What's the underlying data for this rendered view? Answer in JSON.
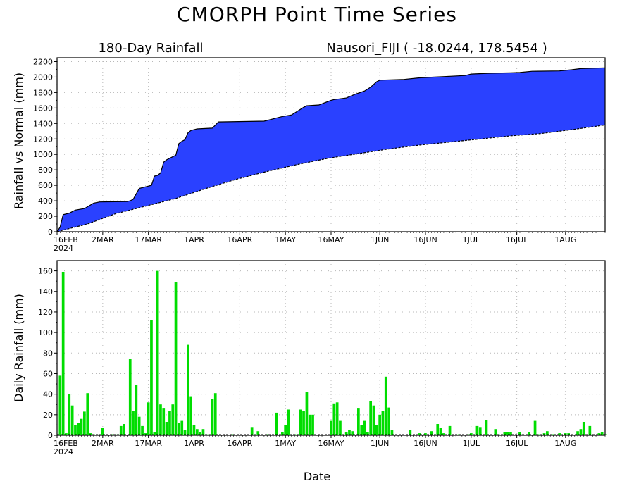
{
  "page": {
    "title": "CMORPH Point Time Series",
    "xlabel": "Date"
  },
  "chart_data": [
    {
      "type": "area",
      "title": "180-Day Rainfall",
      "subtitle": "Nausori_FIJI ( -18.0244, 178.5454 )",
      "ylabel": "Rainfall vs Normal (mm)",
      "ylim": [
        0,
        2250
      ],
      "yticks": [
        0,
        200,
        400,
        600,
        800,
        1000,
        1200,
        1400,
        1600,
        1800,
        2000,
        2200
      ],
      "xlim": [
        "2024-02-16",
        "2024-08-14"
      ],
      "xticks": [
        {
          "date": "2024-02-16",
          "label": "16FEB",
          "label2": "2024"
        },
        {
          "date": "2024-03-02",
          "label": "2MAR"
        },
        {
          "date": "2024-03-17",
          "label": "17MAR"
        },
        {
          "date": "2024-04-01",
          "label": "1APR"
        },
        {
          "date": "2024-04-16",
          "label": "16APR"
        },
        {
          "date": "2024-05-01",
          "label": "1MAY"
        },
        {
          "date": "2024-05-16",
          "label": "16MAY"
        },
        {
          "date": "2024-06-01",
          "label": "1JUN"
        },
        {
          "date": "2024-06-16",
          "label": "16JUN"
        },
        {
          "date": "2024-07-01",
          "label": "1JUL"
        },
        {
          "date": "2024-07-16",
          "label": "16JUL"
        },
        {
          "date": "2024-08-01",
          "label": "1AUG"
        }
      ],
      "grid": true,
      "fill_color": "#2a41ff",
      "series": [
        {
          "points": [
            [
              "2024-02-16",
              0
            ],
            [
              "2024-02-17",
              60
            ],
            [
              "2024-02-18",
              220
            ],
            [
              "2024-02-20",
              240
            ],
            [
              "2024-02-22",
              280
            ],
            [
              "2024-02-25",
              300
            ],
            [
              "2024-02-28",
              370
            ],
            [
              "2024-03-01",
              385
            ],
            [
              "2024-03-06",
              388
            ],
            [
              "2024-03-10",
              390
            ],
            [
              "2024-03-11",
              400
            ],
            [
              "2024-03-12",
              420
            ],
            [
              "2024-03-13",
              490
            ],
            [
              "2024-03-14",
              560
            ],
            [
              "2024-03-16",
              580
            ],
            [
              "2024-03-18",
              600
            ],
            [
              "2024-03-19",
              720
            ],
            [
              "2024-03-20",
              730
            ],
            [
              "2024-03-21",
              760
            ],
            [
              "2024-03-22",
              900
            ],
            [
              "2024-03-23",
              930
            ],
            [
              "2024-03-24",
              950
            ],
            [
              "2024-03-26",
              990
            ],
            [
              "2024-03-27",
              1140
            ],
            [
              "2024-03-28",
              1170
            ],
            [
              "2024-03-29",
              1190
            ],
            [
              "2024-03-30",
              1280
            ],
            [
              "2024-03-31",
              1310
            ],
            [
              "2024-04-02",
              1330
            ],
            [
              "2024-04-07",
              1340
            ],
            [
              "2024-04-08",
              1380
            ],
            [
              "2024-04-09",
              1420
            ],
            [
              "2024-04-24",
              1430
            ],
            [
              "2024-04-26",
              1450
            ],
            [
              "2024-04-28",
              1470
            ],
            [
              "2024-04-30",
              1490
            ],
            [
              "2024-05-03",
              1510
            ],
            [
              "2024-05-05",
              1560
            ],
            [
              "2024-05-07",
              1610
            ],
            [
              "2024-05-08",
              1630
            ],
            [
              "2024-05-12",
              1640
            ],
            [
              "2024-05-14",
              1670
            ],
            [
              "2024-05-16",
              1700
            ],
            [
              "2024-05-17",
              1710
            ],
            [
              "2024-05-21",
              1730
            ],
            [
              "2024-05-24",
              1780
            ],
            [
              "2024-05-27",
              1820
            ],
            [
              "2024-05-29",
              1870
            ],
            [
              "2024-05-31",
              1940
            ],
            [
              "2024-06-01",
              1960
            ],
            [
              "2024-06-09",
              1970
            ],
            [
              "2024-06-14",
              1990
            ],
            [
              "2024-06-19",
              2000
            ],
            [
              "2024-06-24",
              2010
            ],
            [
              "2024-06-29",
              2020
            ],
            [
              "2024-07-01",
              2040
            ],
            [
              "2024-07-07",
              2050
            ],
            [
              "2024-07-14",
              2055
            ],
            [
              "2024-07-17",
              2060
            ],
            [
              "2024-07-21",
              2075
            ],
            [
              "2024-07-30",
              2080
            ],
            [
              "2024-08-03",
              2095
            ],
            [
              "2024-08-06",
              2110
            ],
            [
              "2024-08-14",
              2120
            ]
          ]
        },
        {
          "points": [
            [
              "2024-02-16",
              0
            ],
            [
              "2024-02-26",
              100
            ],
            [
              "2024-03-06",
              230
            ],
            [
              "2024-03-16",
              330
            ],
            [
              "2024-03-26",
              430
            ],
            [
              "2024-04-05",
              560
            ],
            [
              "2024-04-15",
              680
            ],
            [
              "2024-04-25",
              780
            ],
            [
              "2024-05-05",
              870
            ],
            [
              "2024-05-15",
              950
            ],
            [
              "2024-05-25",
              1010
            ],
            [
              "2024-06-04",
              1070
            ],
            [
              "2024-06-14",
              1120
            ],
            [
              "2024-06-24",
              1160
            ],
            [
              "2024-07-04",
              1200
            ],
            [
              "2024-07-14",
              1240
            ],
            [
              "2024-07-24",
              1270
            ],
            [
              "2024-08-03",
              1320
            ],
            [
              "2024-08-14",
              1380
            ]
          ]
        }
      ]
    },
    {
      "type": "bar",
      "ylabel": "Daily Rainfall (mm)",
      "ylim": [
        0,
        170
      ],
      "yticks": [
        0,
        20,
        40,
        60,
        80,
        100,
        120,
        140,
        160
      ],
      "xlim": [
        "2024-02-16",
        "2024-08-14"
      ],
      "xticks": [
        {
          "date": "2024-02-16",
          "label": "16FEB",
          "label2": "2024"
        },
        {
          "date": "2024-03-02",
          "label": "2MAR"
        },
        {
          "date": "2024-03-17",
          "label": "17MAR"
        },
        {
          "date": "2024-04-01",
          "label": "1APR"
        },
        {
          "date": "2024-04-16",
          "label": "16APR"
        },
        {
          "date": "2024-05-01",
          "label": "1MAY"
        },
        {
          "date": "2024-05-16",
          "label": "16MAY"
        },
        {
          "date": "2024-06-01",
          "label": "1JUN"
        },
        {
          "date": "2024-06-16",
          "label": "16JUN"
        },
        {
          "date": "2024-07-01",
          "label": "1JUL"
        },
        {
          "date": "2024-07-16",
          "label": "16JUL"
        },
        {
          "date": "2024-08-01",
          "label": "1AUG"
        }
      ],
      "grid": true,
      "bar_color": "#00dd00",
      "bars": [
        [
          "2024-02-17",
          58
        ],
        [
          "2024-02-18",
          159
        ],
        [
          "2024-02-19",
          2
        ],
        [
          "2024-02-20",
          40
        ],
        [
          "2024-02-21",
          29
        ],
        [
          "2024-02-22",
          10
        ],
        [
          "2024-02-23",
          12
        ],
        [
          "2024-02-24",
          16
        ],
        [
          "2024-02-25",
          23
        ],
        [
          "2024-02-26",
          41
        ],
        [
          "2024-02-27",
          2
        ],
        [
          "2024-02-28",
          1
        ],
        [
          "2024-03-01",
          1
        ],
        [
          "2024-03-02",
          7
        ],
        [
          "2024-03-05",
          1
        ],
        [
          "2024-03-06",
          1
        ],
        [
          "2024-03-07",
          1
        ],
        [
          "2024-03-08",
          9
        ],
        [
          "2024-03-09",
          11
        ],
        [
          "2024-03-11",
          74
        ],
        [
          "2024-03-12",
          24
        ],
        [
          "2024-03-13",
          49
        ],
        [
          "2024-03-14",
          18
        ],
        [
          "2024-03-15",
          9
        ],
        [
          "2024-03-16",
          2
        ],
        [
          "2024-03-17",
          32
        ],
        [
          "2024-03-18",
          112
        ],
        [
          "2024-03-19",
          3
        ],
        [
          "2024-03-20",
          160
        ],
        [
          "2024-03-21",
          30
        ],
        [
          "2024-03-22",
          26
        ],
        [
          "2024-03-23",
          13
        ],
        [
          "2024-03-24",
          24
        ],
        [
          "2024-03-25",
          30
        ],
        [
          "2024-03-26",
          149
        ],
        [
          "2024-03-27",
          12
        ],
        [
          "2024-03-28",
          14
        ],
        [
          "2024-03-29",
          5
        ],
        [
          "2024-03-30",
          88
        ],
        [
          "2024-03-31",
          38
        ],
        [
          "2024-04-01",
          10
        ],
        [
          "2024-04-02",
          6
        ],
        [
          "2024-04-03",
          3
        ],
        [
          "2024-04-04",
          6
        ],
        [
          "2024-04-05",
          1
        ],
        [
          "2024-04-06",
          1
        ],
        [
          "2024-04-07",
          35
        ],
        [
          "2024-04-08",
          41
        ],
        [
          "2024-04-14",
          1
        ],
        [
          "2024-04-20",
          8
        ],
        [
          "2024-04-22",
          4
        ],
        [
          "2024-04-25",
          1
        ],
        [
          "2024-04-28",
          22
        ],
        [
          "2024-04-30",
          3
        ],
        [
          "2024-05-01",
          10
        ],
        [
          "2024-05-02",
          25
        ],
        [
          "2024-05-04",
          1
        ],
        [
          "2024-05-05",
          1
        ],
        [
          "2024-05-06",
          25
        ],
        [
          "2024-05-07",
          24
        ],
        [
          "2024-05-08",
          42
        ],
        [
          "2024-05-09",
          20
        ],
        [
          "2024-05-10",
          20
        ],
        [
          "2024-05-16",
          14
        ],
        [
          "2024-05-17",
          31
        ],
        [
          "2024-05-18",
          32
        ],
        [
          "2024-05-19",
          14
        ],
        [
          "2024-05-20",
          1
        ],
        [
          "2024-05-21",
          3
        ],
        [
          "2024-05-22",
          5
        ],
        [
          "2024-05-23",
          4
        ],
        [
          "2024-05-25",
          26
        ],
        [
          "2024-05-26",
          10
        ],
        [
          "2024-05-27",
          14
        ],
        [
          "2024-05-28",
          3
        ],
        [
          "2024-05-29",
          33
        ],
        [
          "2024-05-30",
          29
        ],
        [
          "2024-05-31",
          10
        ],
        [
          "2024-06-01",
          20
        ],
        [
          "2024-06-02",
          24
        ],
        [
          "2024-06-03",
          57
        ],
        [
          "2024-06-04",
          27
        ],
        [
          "2024-06-05",
          5
        ],
        [
          "2024-06-11",
          5
        ],
        [
          "2024-06-14",
          2
        ],
        [
          "2024-06-16",
          2
        ],
        [
          "2024-06-18",
          4
        ],
        [
          "2024-06-20",
          11
        ],
        [
          "2024-06-21",
          7
        ],
        [
          "2024-06-22",
          2
        ],
        [
          "2024-06-24",
          9
        ],
        [
          "2024-06-27",
          1
        ],
        [
          "2024-06-30",
          1
        ],
        [
          "2024-07-01",
          2
        ],
        [
          "2024-07-03",
          9
        ],
        [
          "2024-07-04",
          8
        ],
        [
          "2024-07-06",
          15
        ],
        [
          "2024-07-09",
          6
        ],
        [
          "2024-07-10",
          1
        ],
        [
          "2024-07-12",
          3
        ],
        [
          "2024-07-13",
          3
        ],
        [
          "2024-07-14",
          3
        ],
        [
          "2024-07-17",
          3
        ],
        [
          "2024-07-18",
          1
        ],
        [
          "2024-07-20",
          3
        ],
        [
          "2024-07-22",
          14
        ],
        [
          "2024-07-23",
          1
        ],
        [
          "2024-07-25",
          2
        ],
        [
          "2024-07-26",
          4
        ],
        [
          "2024-07-28",
          1
        ],
        [
          "2024-07-30",
          2
        ],
        [
          "2024-08-01",
          2
        ],
        [
          "2024-08-02",
          2
        ],
        [
          "2024-08-05",
          4
        ],
        [
          "2024-08-06",
          6
        ],
        [
          "2024-08-07",
          13
        ],
        [
          "2024-08-08",
          1
        ],
        [
          "2024-08-09",
          9
        ],
        [
          "2024-08-10",
          1
        ],
        [
          "2024-08-12",
          2
        ],
        [
          "2024-08-13",
          3
        ],
        [
          "2024-08-14",
          1
        ]
      ]
    }
  ]
}
